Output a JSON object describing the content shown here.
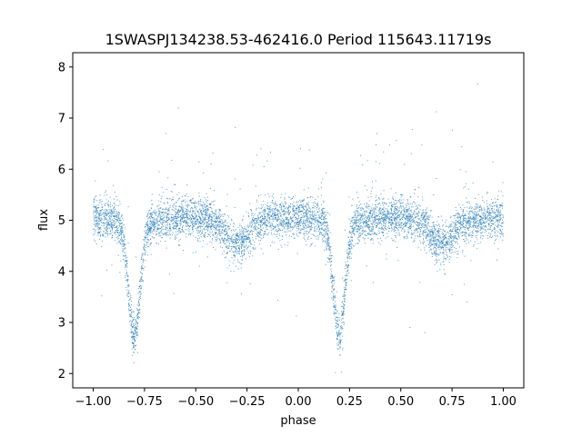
{
  "chart_data": {
    "type": "scatter",
    "title": "1SWASPJ134238.53-462416.0 Period 115643.11719s",
    "xlabel": "phase",
    "ylabel": "flux",
    "xlim": [
      -1.1,
      1.1
    ],
    "ylim": [
      1.72,
      8.28
    ],
    "xticks": [
      -1.0,
      -0.75,
      -0.5,
      -0.25,
      0.0,
      0.25,
      0.5,
      0.75,
      1.0
    ],
    "xtick_labels": [
      "−1.00",
      "−0.75",
      "−0.50",
      "−0.25",
      "0.00",
      "0.25",
      "0.50",
      "0.75",
      "1.00"
    ],
    "yticks": [
      2,
      3,
      4,
      5,
      6,
      7,
      8
    ],
    "ytick_labels": [
      "2",
      "3",
      "4",
      "5",
      "6",
      "7",
      "8"
    ],
    "grid": false,
    "point_color": "#1f77b4",
    "light_curve_model": {
      "baseline_flux": 5.0,
      "primary_minimum": {
        "phase": 0.2,
        "period_repeat": 1.0,
        "min_flux": 2.8
      },
      "secondary_minimum": {
        "phase": -0.3,
        "period_repeat": 1.0,
        "min_flux": 4.6
      }
    }
  }
}
